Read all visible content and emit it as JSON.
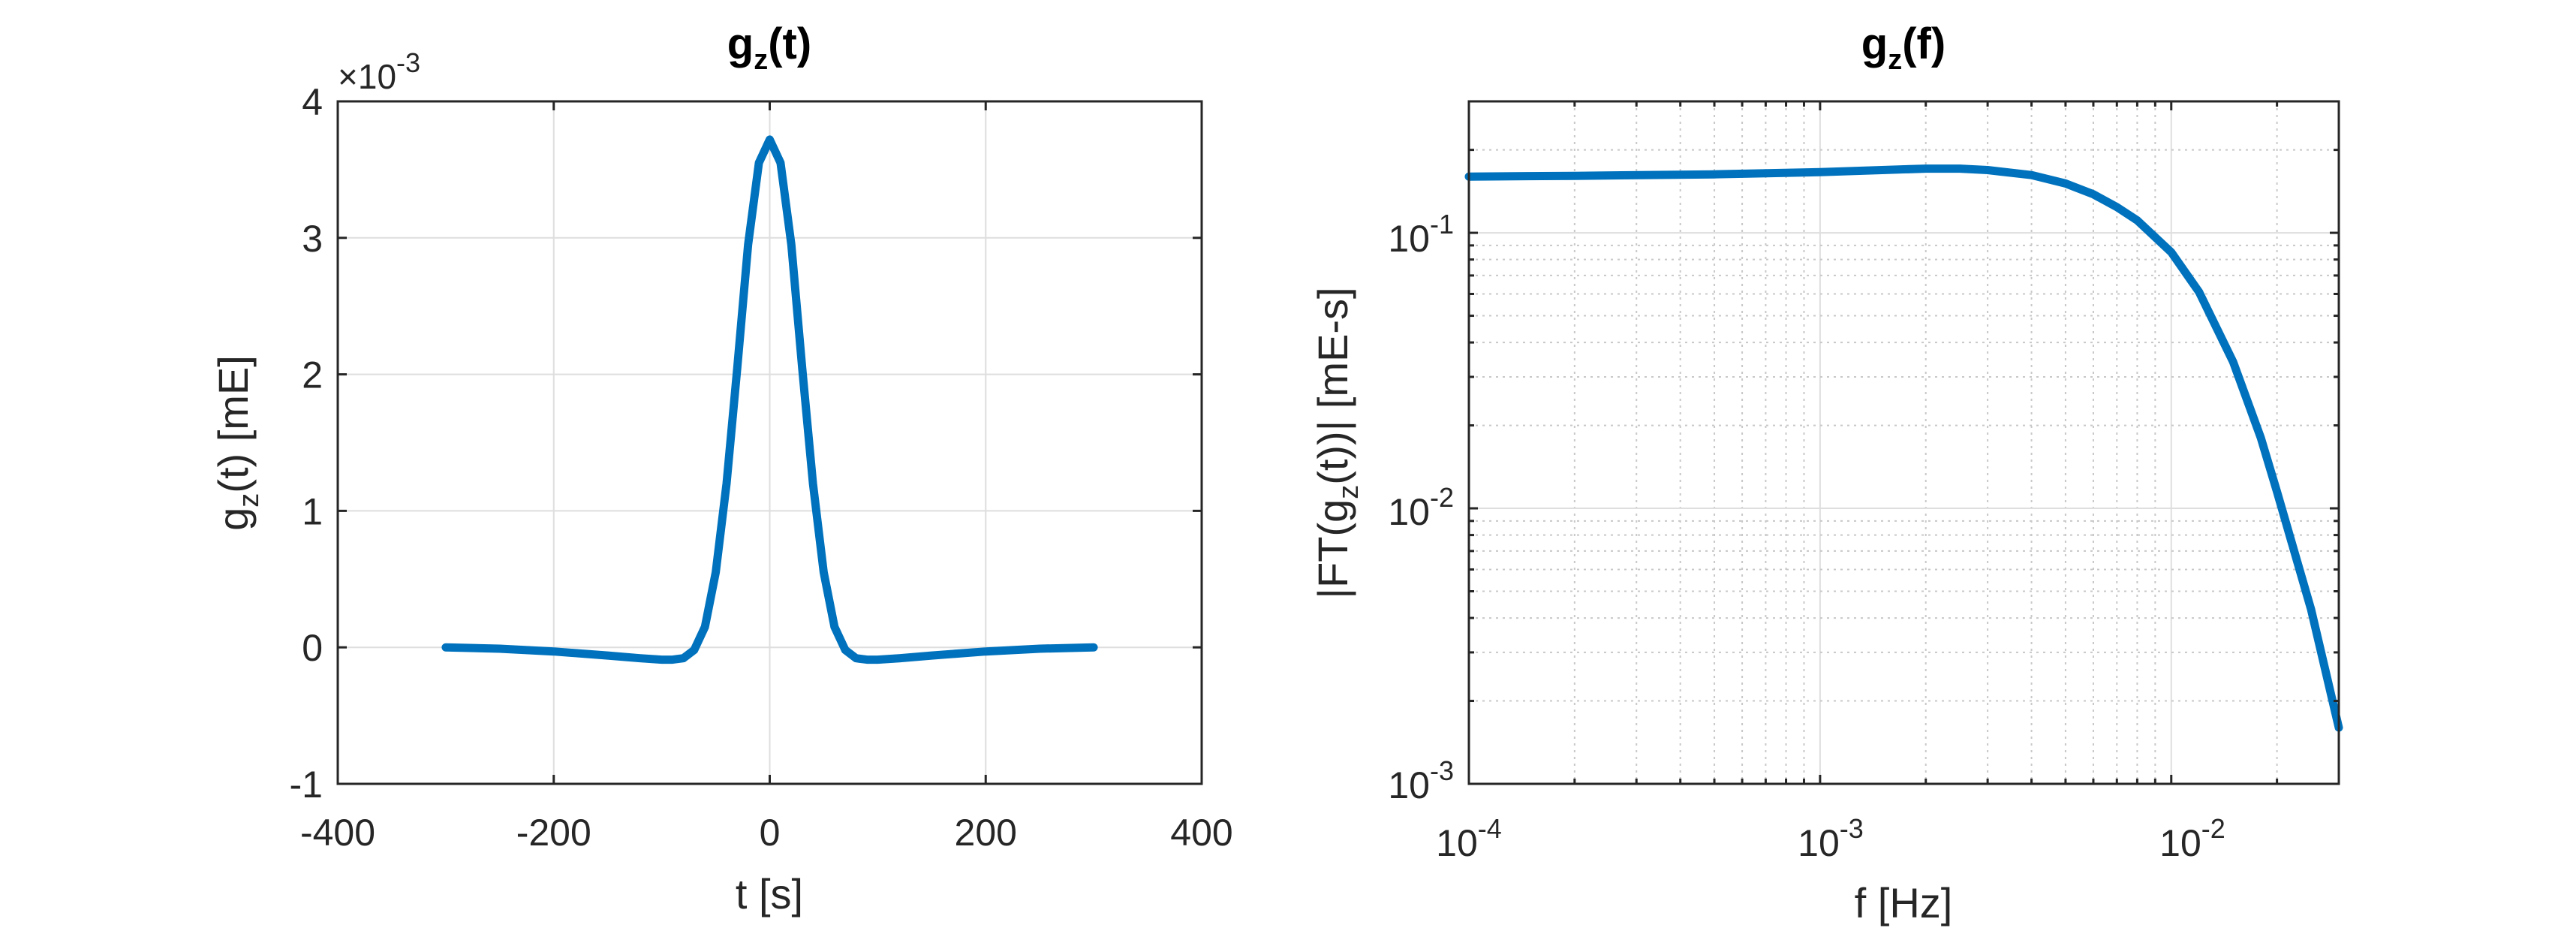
{
  "chart_data": [
    {
      "type": "line",
      "title": "g",
      "title_sub": "z",
      "title_suffix": "(t)",
      "xlabel": "t [s]",
      "ylabel_main": "g",
      "ylabel_sub": "z",
      "ylabel_suffix": "(t) [mE]",
      "xlim": [
        -400,
        400
      ],
      "ylim": [
        -1,
        4
      ],
      "y_multiplier_base": "×10",
      "y_multiplier_exp": "-3",
      "x_ticks": [
        -400,
        -200,
        0,
        200,
        400
      ],
      "x_tick_labels": [
        "-400",
        "-200",
        "0",
        "200",
        "400"
      ],
      "y_ticks": [
        -1,
        0,
        1,
        2,
        3,
        4
      ],
      "y_tick_labels": [
        "-1",
        "0",
        "1",
        "2",
        "3",
        "4"
      ],
      "grid": true,
      "color": "#0072BD",
      "x": [
        -300,
        -250,
        -200,
        -150,
        -120,
        -100,
        -90,
        -80,
        -70,
        -60,
        -50,
        -40,
        -30,
        -20,
        -10,
        0,
        10,
        20,
        30,
        40,
        50,
        60,
        70,
        80,
        90,
        100,
        120,
        150,
        200,
        250,
        300
      ],
      "y": [
        0.0,
        -0.01,
        -0.03,
        -0.06,
        -0.08,
        -0.09,
        -0.09,
        -0.08,
        -0.02,
        0.15,
        0.55,
        1.2,
        2.05,
        2.95,
        3.55,
        3.72,
        3.55,
        2.95,
        2.05,
        1.2,
        0.55,
        0.15,
        -0.02,
        -0.08,
        -0.09,
        -0.09,
        -0.08,
        -0.06,
        -0.03,
        -0.01,
        0.0
      ]
    },
    {
      "type": "line",
      "title": "g",
      "title_sub": "z",
      "title_suffix": "(f)",
      "xlabel": "f [Hz]",
      "ylabel_main": "|FT(g",
      "ylabel_sub": "z",
      "ylabel_suffix": "(t))| [mE-s]",
      "x_scale": "log",
      "y_scale": "log",
      "xlim": [
        0.0001,
        0.03
      ],
      "ylim": [
        0.001,
        0.3
      ],
      "x_tick_base": "10",
      "x_tick_exps": [
        "-4",
        "-3",
        "-2"
      ],
      "y_tick_base": "10",
      "y_tick_exps": [
        "-3",
        "-2",
        "-1"
      ],
      "grid": true,
      "minor_grid": true,
      "color": "#0072BD",
      "x": [
        0.0001,
        0.0002,
        0.0005,
        0.001,
        0.0015,
        0.002,
        0.0025,
        0.003,
        0.004,
        0.005,
        0.006,
        0.007,
        0.008,
        0.01,
        0.012,
        0.015,
        0.018,
        0.02,
        0.025,
        0.03
      ],
      "y": [
        0.16,
        0.161,
        0.163,
        0.166,
        0.169,
        0.171,
        0.171,
        0.169,
        0.162,
        0.151,
        0.138,
        0.124,
        0.111,
        0.085,
        0.061,
        0.034,
        0.018,
        0.0115,
        0.0043,
        0.0016
      ]
    }
  ]
}
